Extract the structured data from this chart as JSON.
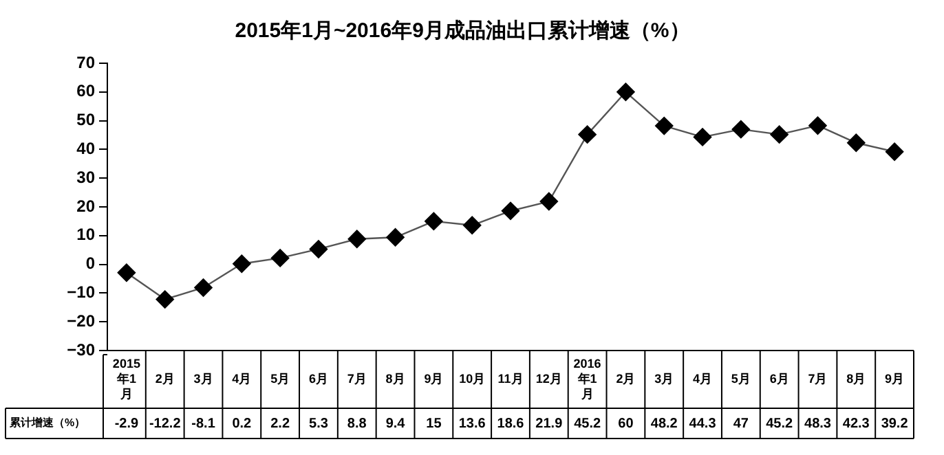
{
  "chart_data": {
    "type": "line",
    "title": "2015年1月~2016年9月成品油出口累计增速（%）",
    "categories": [
      "2015年1月",
      "2月",
      "3月",
      "4月",
      "5月",
      "6月",
      "7月",
      "8月",
      "9月",
      "10月",
      "11月",
      "12月",
      "2016年1月",
      "2月",
      "3月",
      "4月",
      "5月",
      "6月",
      "7月",
      "8月",
      "9月"
    ],
    "series": [
      {
        "name": "累计增速（%）",
        "color": "#000000",
        "values": [
          -2.9,
          -12.2,
          -8.1,
          0.2,
          2.2,
          5.3,
          8.8,
          9.4,
          15,
          13.6,
          18.6,
          21.9,
          45.2,
          60,
          48.2,
          44.3,
          47,
          45.2,
          48.3,
          42.3,
          39.2
        ]
      }
    ],
    "ylim": [
      -30,
      70
    ],
    "yticks": [
      -30,
      -20,
      -10,
      0,
      10,
      20,
      30,
      40,
      50,
      60,
      70
    ],
    "grid": false,
    "legend": false,
    "marker": "diamond",
    "line_style": "solid",
    "data_labels": true
  }
}
